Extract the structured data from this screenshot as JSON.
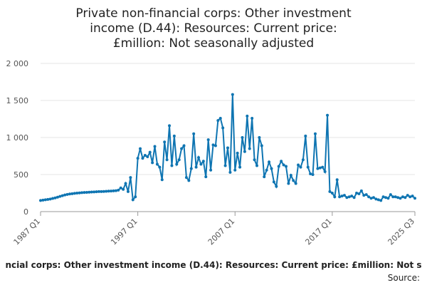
{
  "chart_data": {
    "type": "line",
    "title": "Private non-financial corps: Other investment income (D.44): Resources: Current price: £million: Not seasonally adjusted",
    "footer": "ncial corps: Other investment income (D.44): Resources: Current price: £million: Not s",
    "source": "Source:",
    "categories": [
      "1987 Q1",
      null,
      null,
      null,
      null,
      null,
      null,
      null,
      null,
      null,
      null,
      null,
      null,
      null,
      null,
      null,
      null,
      null,
      null,
      null,
      null,
      null,
      null,
      null,
      null,
      null,
      null,
      null,
      null,
      null,
      null,
      null,
      null,
      null,
      null,
      null,
      null,
      null,
      null,
      null,
      "1997 Q1",
      null,
      null,
      null,
      null,
      null,
      null,
      null,
      null,
      null,
      null,
      null,
      null,
      null,
      null,
      null,
      null,
      null,
      null,
      null,
      null,
      null,
      null,
      null,
      null,
      null,
      null,
      null,
      null,
      null,
      null,
      null,
      null,
      null,
      null,
      null,
      null,
      null,
      null,
      null,
      "2007 Q1",
      null,
      null,
      null,
      null,
      null,
      null,
      null,
      null,
      null,
      null,
      null,
      null,
      null,
      null,
      null,
      null,
      null,
      null,
      null,
      null,
      null,
      null,
      null,
      null,
      null,
      null,
      null,
      null,
      null,
      null,
      null,
      null,
      null,
      null,
      null,
      null,
      null,
      null,
      null,
      "2017 Q1",
      null,
      null,
      null,
      null,
      null,
      null,
      null,
      null,
      null,
      null,
      null,
      null,
      null,
      null,
      null,
      null,
      null,
      null,
      null,
      null,
      null,
      null,
      null,
      null,
      null,
      null,
      null,
      null,
      null,
      null,
      null,
      null,
      null,
      "2025 Q3"
    ],
    "series": [
      {
        "name": "D.44",
        "color": "#0f75b2",
        "values": [
          150,
          155,
          160,
          165,
          170,
          178,
          185,
          195,
          205,
          215,
          225,
          232,
          238,
          242,
          246,
          250,
          253,
          256,
          258,
          260,
          262,
          264,
          266,
          268,
          270,
          271,
          272,
          274,
          276,
          278,
          280,
          282,
          290,
          320,
          300,
          380,
          270,
          460,
          160,
          200,
          720,
          850,
          720,
          760,
          740,
          800,
          660,
          880,
          640,
          600,
          430,
          940,
          700,
          1160,
          620,
          1020,
          640,
          700,
          850,
          890,
          460,
          420,
          580,
          1050,
          600,
          730,
          640,
          680,
          470,
          970,
          560,
          900,
          890,
          1230,
          1260,
          1130,
          620,
          860,
          530,
          1580,
          560,
          790,
          600,
          1000,
          810,
          1290,
          850,
          1260,
          700,
          620,
          1000,
          890,
          470,
          560,
          670,
          580,
          400,
          340,
          610,
          680,
          630,
          610,
          380,
          490,
          420,
          380,
          630,
          600,
          700,
          1020,
          600,
          510,
          500,
          1050,
          580,
          590,
          600,
          540,
          1300,
          270,
          250,
          200,
          430,
          200,
          210,
          220,
          190,
          200,
          210,
          190,
          250,
          240,
          280,
          220,
          230,
          200,
          180,
          190,
          170,
          160,
          150,
          200,
          190,
          180,
          230,
          200,
          200,
          190,
          180,
          200,
          190,
          220,
          200,
          210,
          180
        ]
      }
    ],
    "ylim": [
      0,
      2000
    ],
    "yticks": [
      0,
      500,
      {
        "value": 1000,
        "label": "1 000"
      },
      {
        "value": 1500,
        "label": "1 500"
      },
      {
        "value": 2000,
        "label": "2 000"
      }
    ],
    "grid": true
  }
}
